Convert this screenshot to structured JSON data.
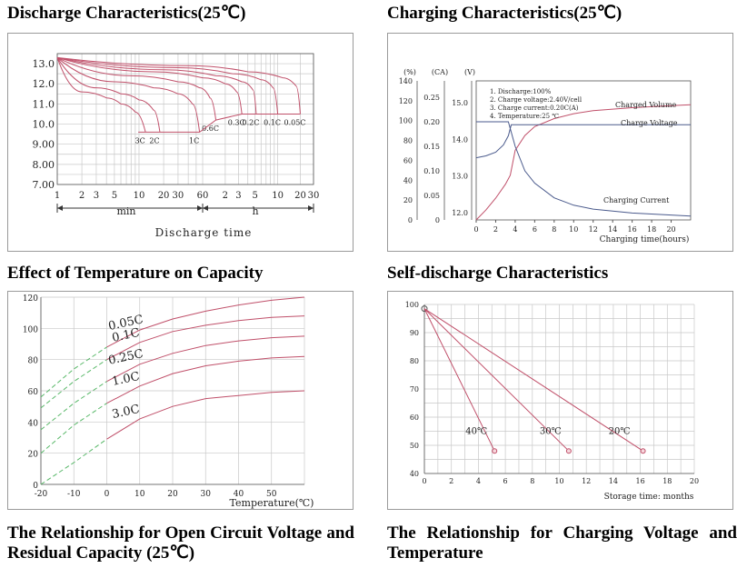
{
  "headings": {
    "discharge": "Discharge Characteristics(25℃)",
    "charging": "Charging Characteristics(25℃)",
    "temperature": "Effect of Temperature on Capacity",
    "selfdischarge": "Self-discharge Characteristics",
    "ocv": "The Relationship for Open Circuit Voltage and Residual Capacity (25℃)",
    "chargingvoltage": "The Relationship for Charging Voltage and Temperature"
  },
  "colors": {
    "curve": "#c0506a",
    "blue": "#4a5a8c",
    "green": "#58b868",
    "grid": "#c8c8c8",
    "axis": "#555555"
  },
  "chart_data": [
    {
      "id": "discharge",
      "type": "line",
      "title": "",
      "xlabel": "Discharge time",
      "ylabel": "",
      "scale_groups": [
        "min",
        "h"
      ],
      "x_scale": "log-time (minutes to hours)",
      "x_ticks": [
        "1",
        "2",
        "3",
        "5",
        "10",
        "20",
        "30",
        "60",
        "2",
        "3",
        "5",
        "10",
        "20",
        "30"
      ],
      "y_ticks": [
        "13.0",
        "12.0",
        "11.0",
        "10.0",
        "9.00",
        "8.00",
        "7.00"
      ],
      "ylim": [
        7.0,
        13.5
      ],
      "grid": true,
      "series": [
        {
          "name": "3C",
          "cutoff_voltage": 9.6,
          "x_min": [
            1,
            2,
            4,
            6,
            9,
            12
          ],
          "y": [
            13.3,
            11.6,
            11.3,
            11.0,
            10.6,
            9.6
          ]
        },
        {
          "name": "2C",
          "cutoff_voltage": 9.6,
          "x_min": [
            1,
            3,
            6,
            10,
            15,
            18
          ],
          "y": [
            13.3,
            11.8,
            11.5,
            11.2,
            10.7,
            9.6
          ]
        },
        {
          "name": "1C",
          "cutoff_voltage": 9.6,
          "x_min": [
            1,
            5,
            15,
            30,
            45,
            55
          ],
          "y": [
            13.3,
            12.1,
            11.8,
            11.5,
            11.0,
            9.6
          ]
        },
        {
          "name": "0.6C",
          "cutoff_voltage": 10.2,
          "x_min": [
            1,
            8,
            30,
            55,
            75,
            90
          ],
          "y": [
            13.3,
            12.4,
            12.1,
            11.8,
            11.3,
            10.2
          ]
        },
        {
          "name": "0.3C",
          "cutoff_voltage": 10.5,
          "x_min": [
            1,
            15,
            60,
            120,
            170,
            200
          ],
          "y": [
            13.3,
            12.6,
            12.3,
            12.0,
            11.6,
            10.5
          ]
        },
        {
          "name": "0.2C",
          "cutoff_voltage": 10.5,
          "x_min": [
            1,
            20,
            90,
            200,
            280,
            310
          ],
          "y": [
            13.3,
            12.7,
            12.4,
            12.1,
            11.7,
            10.5
          ]
        },
        {
          "name": "0.1C",
          "cutoff_voltage": 10.5,
          "x_min": [
            1,
            30,
            150,
            360,
            520,
            600
          ],
          "y": [
            13.3,
            12.8,
            12.5,
            12.2,
            11.8,
            10.5
          ]
        },
        {
          "name": "0.05C",
          "cutoff_voltage": 10.5,
          "x_min": [
            1,
            40,
            240,
            700,
            1050,
            1200
          ],
          "y": [
            13.3,
            12.9,
            12.6,
            12.3,
            11.9,
            10.5
          ]
        }
      ]
    },
    {
      "id": "charging",
      "type": "line",
      "title": "",
      "xlabel": "Charging time(hours)",
      "axis_units": [
        "(%)",
        "(CA)",
        "(V)"
      ],
      "x_ticks": [
        "0",
        "2",
        "4",
        "6",
        "8",
        "10",
        "12",
        "14",
        "16",
        "18",
        "20"
      ],
      "xlim": [
        0,
        22
      ],
      "left_ticks": [
        "140",
        "120",
        "100",
        "80",
        "60",
        "40",
        "20",
        "0"
      ],
      "ca_ticks": [
        "0.25",
        "0.20",
        "0.15",
        "0.10",
        "0.05",
        "0"
      ],
      "v_ticks": [
        "15.0",
        "14.0",
        "13.0",
        "12.0"
      ],
      "notes": [
        "1. Discharge:100%",
        "2. Charge voltage:2.40V/cell",
        "3. Charge current:0.20C(A)",
        "4. Temperature:25 ℃"
      ],
      "series": [
        {
          "name": "Charged Volume",
          "unit": "%",
          "x": [
            0,
            1,
            2,
            3,
            3.5,
            4,
            5,
            6,
            8,
            10,
            12,
            16,
            20,
            22
          ],
          "y": [
            0,
            10,
            22,
            36,
            45,
            70,
            85,
            94,
            102,
            107,
            110,
            113,
            115,
            116
          ]
        },
        {
          "name": "Charge Voltage",
          "unit": "V",
          "x": [
            0,
            1,
            2,
            2.8,
            3.3,
            3.6,
            4,
            6,
            10,
            22
          ],
          "y": [
            13.5,
            13.55,
            13.65,
            13.85,
            14.1,
            14.4,
            14.4,
            14.4,
            14.4,
            14.4
          ]
        },
        {
          "name": "Charging Current",
          "unit": "CA",
          "x": [
            0,
            3.3,
            4,
            5,
            6,
            8,
            10,
            12,
            16,
            20,
            22
          ],
          "y": [
            0.2,
            0.2,
            0.15,
            0.1,
            0.075,
            0.045,
            0.03,
            0.022,
            0.014,
            0.01,
            0.008
          ]
        }
      ]
    },
    {
      "id": "temperature",
      "type": "line",
      "title": "",
      "xlabel": "Temperature(℃)",
      "x_ticks": [
        "-20",
        "-10",
        "0",
        "10",
        "20",
        "30",
        "40",
        "50"
      ],
      "xlim": [
        -20,
        60
      ],
      "y_ticks": [
        "0",
        "20",
        "40",
        "60",
        "80",
        "100",
        "120"
      ],
      "ylim": [
        0,
        120
      ],
      "extrapolated_below": 0,
      "series": [
        {
          "name": "0.05C",
          "x": [
            -20,
            -10,
            0,
            10,
            20,
            30,
            40,
            50,
            60
          ],
          "y": [
            56,
            74,
            88,
            99,
            106,
            111,
            115,
            118,
            120
          ]
        },
        {
          "name": "0.1C",
          "x": [
            -20,
            -10,
            0,
            10,
            20,
            30,
            40,
            50,
            60
          ],
          "y": [
            49,
            66,
            80,
            91,
            98,
            102,
            105,
            107,
            108
          ]
        },
        {
          "name": "0.25C",
          "x": [
            -20,
            -10,
            0,
            10,
            20,
            30,
            40,
            50,
            60
          ],
          "y": [
            35,
            52,
            66,
            77,
            84,
            89,
            92,
            94,
            95
          ]
        },
        {
          "name": "1.0C",
          "x": [
            -20,
            -10,
            0,
            10,
            20,
            30,
            40,
            50,
            60
          ],
          "y": [
            20,
            38,
            52,
            63,
            71,
            76,
            79,
            81,
            82
          ]
        },
        {
          "name": "3.0C",
          "x": [
            -20,
            -10,
            0,
            10,
            20,
            30,
            40,
            50,
            60
          ],
          "y": [
            0,
            14,
            29,
            42,
            50,
            55,
            57,
            59,
            60
          ]
        }
      ]
    },
    {
      "id": "selfdischarge",
      "type": "line",
      "title": "",
      "xlabel": "Storage time: months",
      "x_ticks": [
        "0",
        "2",
        "4",
        "6",
        "8",
        "10",
        "12",
        "14",
        "16",
        "18",
        "20"
      ],
      "xlim": [
        0,
        20
      ],
      "y_ticks": [
        "40",
        "50",
        "60",
        "70",
        "80",
        "90",
        "100"
      ],
      "ylim": [
        40,
        100
      ],
      "series": [
        {
          "name": "40℃",
          "x": [
            0,
            5.2
          ],
          "y": [
            98.5,
            48
          ]
        },
        {
          "name": "30℃",
          "x": [
            0,
            10.7
          ],
          "y": [
            98.5,
            48
          ]
        },
        {
          "name": "20℃",
          "x": [
            0,
            16.2
          ],
          "y": [
            98.5,
            48
          ]
        }
      ]
    }
  ]
}
